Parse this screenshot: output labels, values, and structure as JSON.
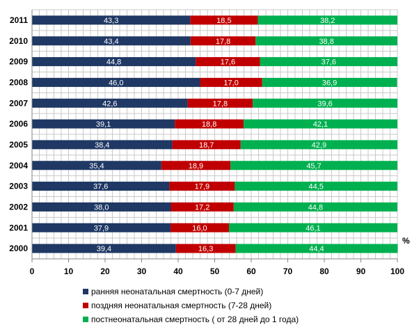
{
  "chart_data": {
    "type": "bar",
    "orientation": "horizontal",
    "stacked": true,
    "categories": [
      "2000",
      "2001",
      "2002",
      "2003",
      "2004",
      "2005",
      "2006",
      "2007",
      "2008",
      "2009",
      "2010",
      "2011"
    ],
    "series": [
      {
        "name": "ранняя неонатальная смертность (0-7 дней)",
        "color": "#1f3864",
        "values": [
          39.4,
          37.9,
          38.0,
          37.6,
          35.4,
          38.4,
          39.1,
          42.6,
          46.0,
          44.8,
          43.4,
          43.3
        ],
        "labels": [
          "39,4",
          "37,9",
          "38,0",
          "37,6",
          "35,4",
          "38,4",
          "39,1",
          "42,6",
          "46,0",
          "44,8",
          "43,4",
          "43,3"
        ]
      },
      {
        "name": "поздняя неонатальная смертность (7-28 дней)",
        "color": "#c00000",
        "values": [
          16.3,
          16.0,
          17.2,
          17.9,
          18.9,
          18.7,
          18.8,
          17.8,
          17.0,
          17.6,
          17.8,
          18.5
        ],
        "labels": [
          "16,3",
          "16,0",
          "17,2",
          "17,9",
          "18,9",
          "18,7",
          "18,8",
          "17,8",
          "17,0",
          "17,6",
          "17,8",
          "18,5"
        ]
      },
      {
        "name": "постнеонатальная смертность ( от 28 дней до 1 года)",
        "color": "#00b050",
        "values": [
          44.4,
          46.1,
          44.8,
          44.5,
          45.7,
          42.9,
          42.1,
          39.6,
          36.9,
          37.6,
          38.8,
          38.2
        ],
        "labels": [
          "44,4",
          "46,1",
          "44,8",
          "44,5",
          "45,7",
          "42,9",
          "42,1",
          "39,6",
          "36,9",
          "37,6",
          "38,8",
          "38,2"
        ]
      }
    ],
    "xlim": [
      0,
      100
    ],
    "xticks": [
      "0",
      "10",
      "20",
      "30",
      "40",
      "50",
      "60",
      "70",
      "80",
      "90",
      "100"
    ],
    "unit_label": "%",
    "grid": true,
    "legend_position": "bottom"
  }
}
